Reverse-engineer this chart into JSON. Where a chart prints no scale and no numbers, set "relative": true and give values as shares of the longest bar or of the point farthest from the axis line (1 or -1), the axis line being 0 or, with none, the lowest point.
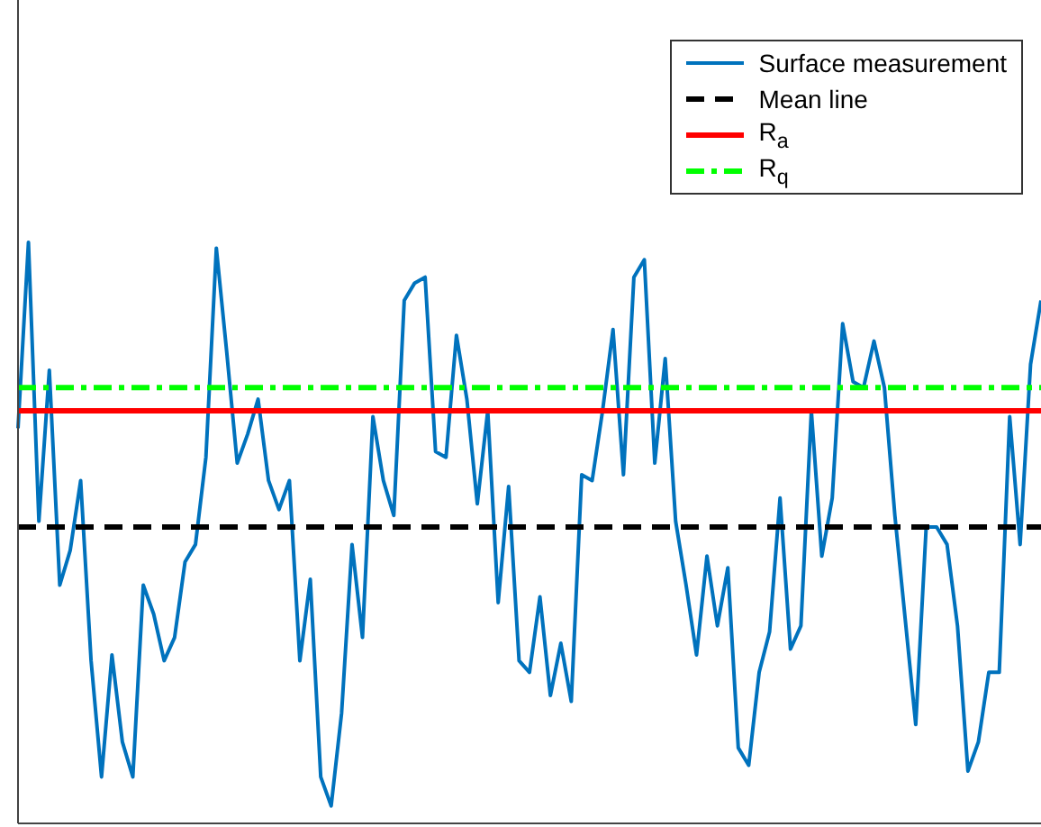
{
  "chart_data": {
    "type": "line",
    "relative": true,
    "categories": [
      null,
      null,
      null,
      null,
      null,
      null,
      null,
      null,
      null,
      null,
      null,
      null,
      null,
      null,
      null,
      null,
      null,
      null,
      null,
      null,
      null,
      null,
      null,
      null,
      null,
      null,
      null,
      null,
      null,
      null,
      null,
      null,
      null,
      null,
      null,
      null,
      null,
      null,
      null,
      null,
      null,
      null,
      null,
      null,
      null,
      null,
      null,
      null,
      null,
      null,
      null,
      null,
      null,
      null,
      null,
      null,
      null,
      null,
      null,
      null,
      null,
      null,
      null,
      null,
      null,
      null,
      null,
      null,
      null,
      null,
      null,
      null,
      null,
      null,
      null,
      null,
      null,
      null,
      null,
      null,
      null,
      null,
      null,
      null,
      null,
      null,
      null,
      null,
      null,
      null,
      null,
      null,
      null,
      null,
      null,
      null,
      null,
      null,
      null
    ],
    "series": [
      {
        "name": "Surface measurement",
        "color": "#0072bd",
        "values": [
          0.68,
          1,
          0.52,
          0.78,
          0.41,
          0.47,
          0.59,
          0.28,
          0.08,
          0.29,
          0.14,
          0.08,
          0.41,
          0.36,
          0.28,
          0.32,
          0.45,
          0.48,
          0.63,
          0.99,
          0.81,
          0.62,
          0.67,
          0.73,
          0.59,
          0.54,
          0.59,
          0.28,
          0.42,
          0.08,
          0.03,
          0.19,
          0.48,
          0.32,
          0.7,
          0.59,
          0.53,
          0.9,
          0.93,
          0.94,
          0.64,
          0.63,
          0.84,
          0.73,
          0.55,
          0.71,
          0.38,
          0.58,
          0.28,
          0.26,
          0.39,
          0.22,
          0.31,
          0.21,
          0.6,
          0.59,
          0.71,
          0.85,
          0.6,
          0.94,
          0.97,
          0.62,
          0.8,
          0.52,
          0.41,
          0.29,
          0.46,
          0.34,
          0.44,
          0.13,
          0.1,
          0.26,
          0.33,
          0.56,
          0.3,
          0.34,
          0.71,
          0.46,
          0.56,
          0.86,
          0.76,
          0.75,
          0.83,
          0.75,
          0.53,
          0.35,
          0.17,
          0.51,
          0.51,
          0.48,
          0.34,
          0.09,
          0.14,
          0.26,
          0.26,
          0.7,
          0.48,
          0.79,
          0.9
        ]
      }
    ],
    "ref_lines": [
      {
        "axis": "y",
        "value": 0.51,
        "label": "Mean line",
        "color": "#000000",
        "line_style": "dashed"
      },
      {
        "axis": "y",
        "value": 0.71,
        "label": "R$_{a}$",
        "color": "#ff0000",
        "line_style": "solid"
      },
      {
        "axis": "y",
        "value": 0.75,
        "label": "R$_{q}$",
        "color": "#00ff00",
        "line_style": "dashdot"
      }
    ],
    "legend": "top right",
    "marker": "none",
    "grid": false,
    "line_style": "solid"
  }
}
